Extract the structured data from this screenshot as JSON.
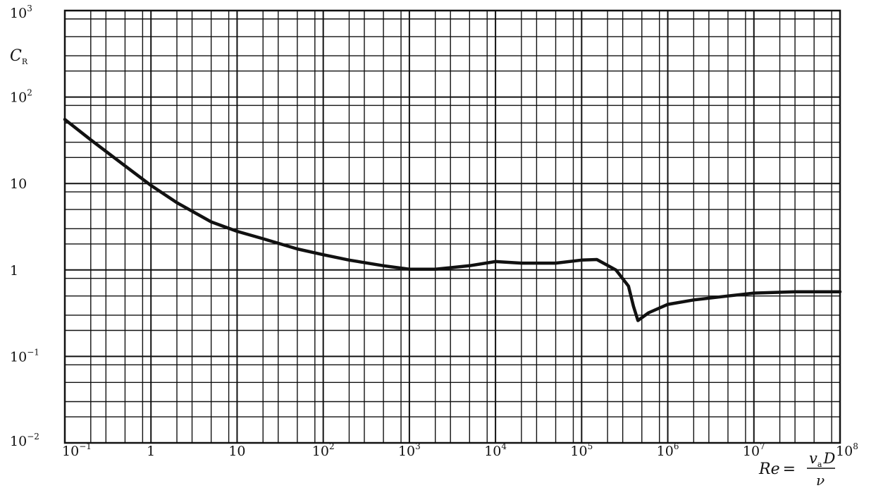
{
  "chart_data": {
    "type": "line",
    "title": "",
    "xlabel": "Re",
    "xlabel_expr": {
      "equals": "=",
      "numerator": "v",
      "numerator_sub": "a",
      "numerator_tail": "D",
      "denominator": "ν"
    },
    "ylabel": "C",
    "ylabel_sub": "R",
    "x_scale": "log",
    "y_scale": "log",
    "xlim": [
      0.1,
      100000000
    ],
    "ylim": [
      0.01,
      1000
    ],
    "grid": true,
    "x_ticks": [
      {
        "value": 0.1,
        "base": "10",
        "exp": "−1"
      },
      {
        "value": 1,
        "base": "1",
        "exp": ""
      },
      {
        "value": 10,
        "base": "10",
        "exp": ""
      },
      {
        "value": 100,
        "base": "10",
        "exp": "2"
      },
      {
        "value": 1000,
        "base": "10",
        "exp": "3"
      },
      {
        "value": 10000,
        "base": "10",
        "exp": "4"
      },
      {
        "value": 100000,
        "base": "10",
        "exp": "5"
      },
      {
        "value": 1000000,
        "base": "10",
        "exp": "6"
      },
      {
        "value": 10000000,
        "base": "10",
        "exp": "7"
      },
      {
        "value": 100000000,
        "base": "10",
        "exp": "8"
      }
    ],
    "y_ticks": [
      {
        "value": 1000,
        "base": "10",
        "exp": "3"
      },
      {
        "value": 100,
        "base": "10",
        "exp": "2"
      },
      {
        "value": 10,
        "base": "10",
        "exp": ""
      },
      {
        "value": 1,
        "base": "1",
        "exp": ""
      },
      {
        "value": 0.1,
        "base": "10",
        "exp": "−1"
      },
      {
        "value": 0.01,
        "base": "10",
        "exp": "−2"
      }
    ],
    "series": [
      {
        "points": [
          [
            0.1,
            55
          ],
          [
            0.2,
            32
          ],
          [
            0.5,
            16
          ],
          [
            1,
            9.5
          ],
          [
            2,
            6
          ],
          [
            5,
            3.6
          ],
          [
            10,
            2.8
          ],
          [
            20,
            2.3
          ],
          [
            50,
            1.75
          ],
          [
            100,
            1.5
          ],
          [
            200,
            1.3
          ],
          [
            500,
            1.12
          ],
          [
            1000,
            1.02
          ],
          [
            2000,
            1.02
          ],
          [
            5000,
            1.12
          ],
          [
            10000,
            1.25
          ],
          [
            20000,
            1.2
          ],
          [
            50000,
            1.2
          ],
          [
            100000,
            1.3
          ],
          [
            150000,
            1.32
          ],
          [
            250000,
            1.0
          ],
          [
            350000,
            0.65
          ],
          [
            400000,
            0.38
          ],
          [
            450000,
            0.26
          ],
          [
            600000,
            0.32
          ],
          [
            1000000,
            0.4
          ],
          [
            2000000,
            0.45
          ],
          [
            5000000,
            0.5
          ],
          [
            10000000,
            0.54
          ],
          [
            30000000,
            0.56
          ],
          [
            100000000,
            0.56
          ]
        ]
      }
    ]
  }
}
